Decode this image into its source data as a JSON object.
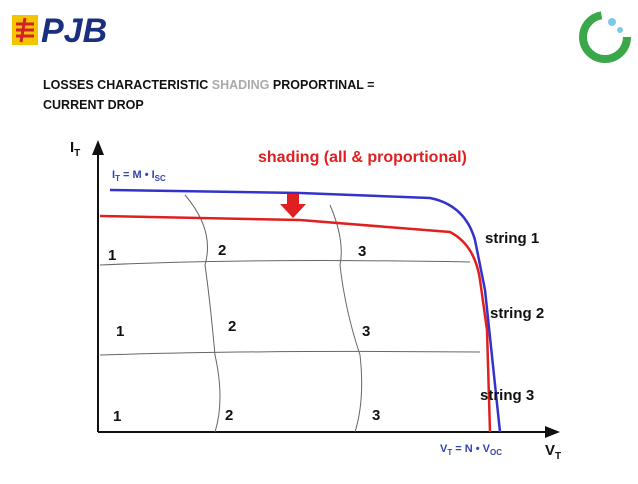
{
  "header": {
    "logo": "PJB"
  },
  "title": {
    "part1": "LOSSES CHARACTERISTIC ",
    "highlight": "SHADING",
    "part2": " PROPORTINAL =",
    "line2": "CURRENT DROP"
  },
  "diagram": {
    "y_axis": {
      "main": "I",
      "sub": "T"
    },
    "x_axis": {
      "main": "V",
      "sub": "T"
    },
    "current_formula": {
      "lhs": "I",
      "lhs_sub": "T",
      "mid": " = M • I",
      "rhs_sub": "SC"
    },
    "voltage_formula": {
      "lhs": "V",
      "lhs_sub": "T",
      "mid": " = N • V",
      "rhs_sub": "OC"
    },
    "shading_label": "shading (all & proportional)",
    "strings": [
      "string 1",
      "string 2",
      "string 3"
    ],
    "cells": [
      [
        "1",
        "2",
        "3"
      ],
      [
        "1",
        "2",
        "3"
      ],
      [
        "1",
        "2",
        "3"
      ]
    ]
  }
}
